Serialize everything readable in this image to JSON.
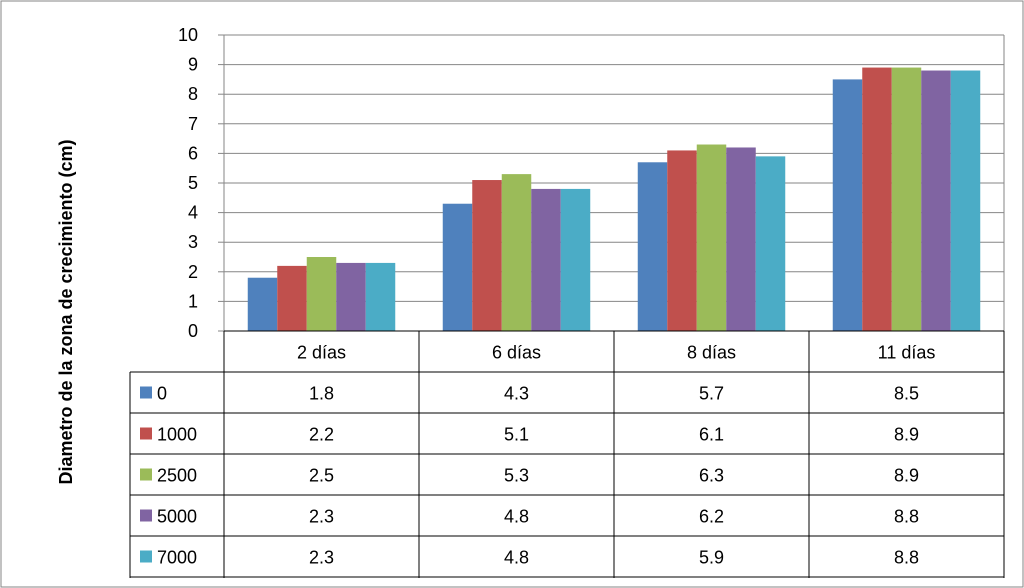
{
  "chart_data": {
    "type": "bar",
    "categories": [
      "2 días",
      "6 días",
      "8 días",
      "11 días"
    ],
    "series": [
      {
        "name": "0",
        "color": "#4F81BD",
        "values": [
          1.8,
          4.3,
          5.7,
          8.5
        ]
      },
      {
        "name": "1000",
        "color": "#C0504D",
        "values": [
          2.2,
          5.1,
          6.1,
          8.9
        ]
      },
      {
        "name": "2500",
        "color": "#9BBB59",
        "values": [
          2.5,
          5.3,
          6.3,
          8.9
        ]
      },
      {
        "name": "5000",
        "color": "#8064A2",
        "values": [
          2.3,
          4.8,
          6.2,
          8.8
        ]
      },
      {
        "name": "7000",
        "color": "#4BACC6",
        "values": [
          2.3,
          4.8,
          5.9,
          8.8
        ]
      }
    ],
    "table_values": [
      [
        "1.8",
        "4.3",
        "5.7",
        "8.5"
      ],
      [
        "2.2",
        "5.1",
        "6.1",
        "8.9"
      ],
      [
        "2.5",
        "5.3",
        "6.3",
        "8.9"
      ],
      [
        "2.3",
        "4.8",
        "6.2",
        "8.8"
      ],
      [
        "2.3",
        "4.8",
        "5.9",
        "8.8"
      ]
    ],
    "title": "",
    "xlabel": "",
    "ylabel": "Diametro de la zona de crecimiento (cm)",
    "ylim": [
      0,
      10
    ],
    "yticks": [
      "0",
      "1",
      "2",
      "3",
      "4",
      "5",
      "6",
      "7",
      "8",
      "9",
      "10"
    ],
    "grid": true,
    "legend": "data-table"
  }
}
